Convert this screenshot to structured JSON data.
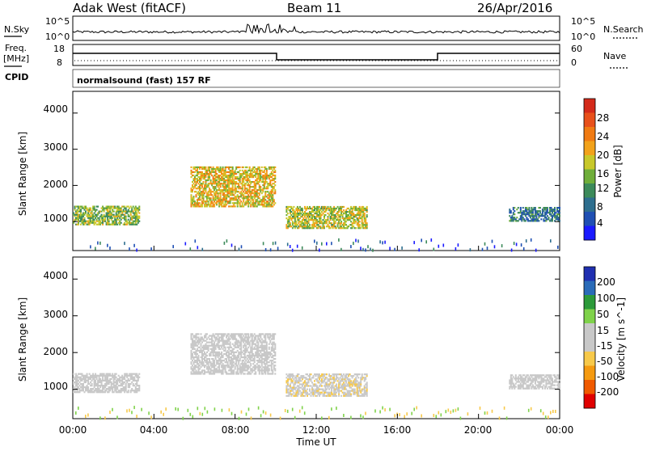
{
  "header": {
    "station": "Adak West (fitACF)",
    "beam": "Beam 11",
    "date": "26/Apr/2016"
  },
  "top_panel": {
    "left_label": "N.Sky",
    "right_label": "N.Search",
    "left_ticks": [
      "10^5",
      "10^0"
    ],
    "right_ticks": [
      "10^5",
      "10^0"
    ]
  },
  "freq_panel": {
    "left_label_1": "Freq.",
    "left_label_2": "[MHz]",
    "left_ticks": [
      "18",
      "8"
    ],
    "right_label": "Nave",
    "right_ticks": [
      "60",
      "0"
    ],
    "cpid_label": "CPID",
    "mode_text": "normalsound (fast) 157 RF"
  },
  "colors": {
    "power_scale": [
      "#1a1aff",
      "#1f4fb3",
      "#2e6e8e",
      "#3c8a5a",
      "#6fae3a",
      "#c8c82a",
      "#f2a21a",
      "#f07a12",
      "#e8501a",
      "#d42a1a"
    ],
    "velocity_scale": [
      "#e00000",
      "#f05a00",
      "#f59a10",
      "#f7c94a",
      "#c8c8c8",
      "#c8c8c8",
      "#7fd24a",
      "#2c9a3a",
      "#2a6bb8",
      "#1f2fb0"
    ],
    "gray": "#c8c8c8"
  },
  "chart_data": [
    {
      "type": "heatmap",
      "name": "power",
      "ylabel": "Slant Range [km]",
      "ylim": [
        200,
        4600
      ],
      "y_ticks": [
        "4000",
        "3000",
        "2000",
        "1000"
      ],
      "colorbar_label": "Power [dB]",
      "colorbar_ticks": [
        "28",
        "24",
        "20",
        "16",
        "12",
        "8",
        "4"
      ],
      "colorbar_range": [
        0,
        30
      ],
      "regions": [
        {
          "t0": 0.0,
          "t1": 3.3,
          "r0": 900,
          "r1": 1400,
          "level": 14
        },
        {
          "t0": 5.8,
          "t1": 10.0,
          "r0": 1400,
          "r1": 2500,
          "level": 18
        },
        {
          "t0": 10.5,
          "t1": 14.5,
          "r0": 800,
          "r1": 1400,
          "level": 16
        },
        {
          "t0": 21.5,
          "t1": 24.0,
          "r0": 1000,
          "r1": 1400,
          "level": 8
        }
      ]
    },
    {
      "type": "heatmap",
      "name": "velocity",
      "ylabel": "Slant Range [km]",
      "ylim": [
        200,
        4600
      ],
      "y_ticks": [
        "4000",
        "3000",
        "2000",
        "1000"
      ],
      "colorbar_label": "Velocity [m s^-1]",
      "colorbar_ticks": [
        "200",
        "100",
        "50",
        "15",
        "-15",
        "-50",
        "-100",
        "-200"
      ],
      "colorbar_range": [
        -250,
        250
      ],
      "regions": [
        {
          "t0": 0.0,
          "t1": 3.3,
          "r0": 900,
          "r1": 1400,
          "level": 0
        },
        {
          "t0": 5.8,
          "t1": 10.0,
          "r0": 1400,
          "r1": 2500,
          "level": 0
        },
        {
          "t0": 10.5,
          "t1": 14.5,
          "r0": 800,
          "r1": 1400,
          "level": -40
        },
        {
          "t0": 21.5,
          "t1": 24.0,
          "r0": 1000,
          "r1": 1400,
          "level": 0
        }
      ]
    }
  ],
  "x_axis": {
    "label": "Time UT",
    "ticks": [
      "00:00",
      "04:00",
      "08:00",
      "12:00",
      "16:00",
      "20:00",
      "00:00"
    ],
    "xlim": [
      0,
      24
    ]
  }
}
